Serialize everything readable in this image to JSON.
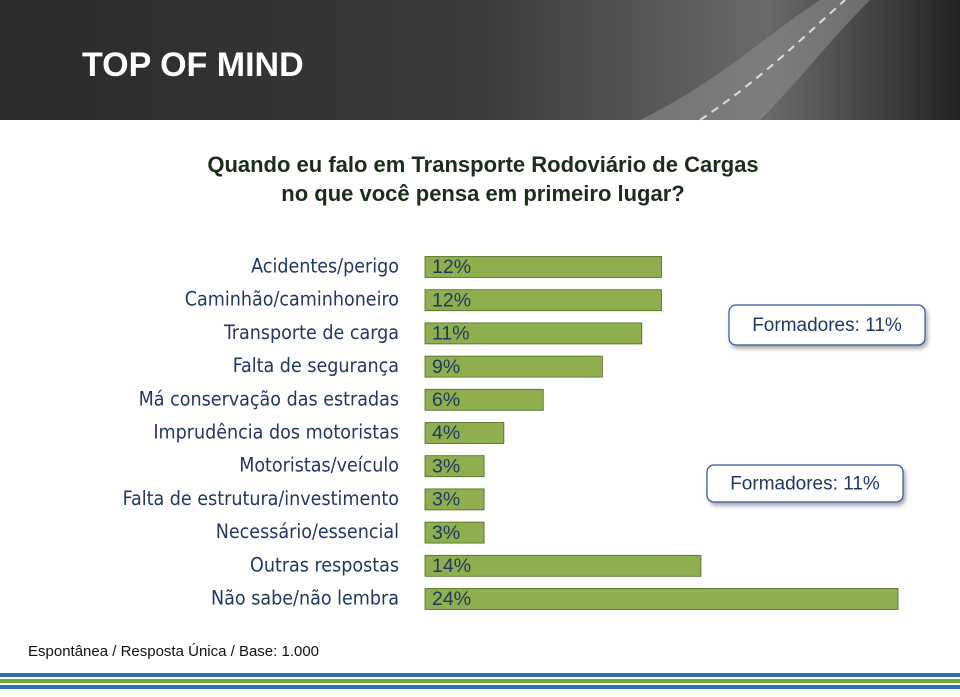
{
  "header": {
    "title": "TOP OF MIND"
  },
  "chart_data": {
    "type": "bar",
    "orientation": "horizontal",
    "title": [
      "Quando eu falo em Transporte Rodoviário de Cargas",
      "no que você pensa em primeiro lugar?"
    ],
    "categories": [
      "Acidentes/perigo",
      "Caminhão/caminhoneiro",
      "Transporte de carga",
      "Falta de segurança",
      "Má conservação das estradas",
      "Imprudência dos motoristas",
      "Motoristas/veículo",
      "Falta de estrutura/investimento",
      "Necessário/essencial",
      "Outras respostas",
      "Não sabe/não lembra"
    ],
    "values": [
      12,
      12,
      11,
      9,
      6,
      4,
      3,
      3,
      3,
      14,
      24
    ],
    "value_labels": [
      "12%",
      "12%",
      "11%",
      "9%",
      "6%",
      "4%",
      "3%",
      "3%",
      "3%",
      "14%",
      "24%"
    ],
    "color": "#8faf4f",
    "annotations": [
      "Formadores: 11%",
      "Formadores: 11%"
    ],
    "note": "Espontânea / Resposta Única / Base: 1.000"
  }
}
